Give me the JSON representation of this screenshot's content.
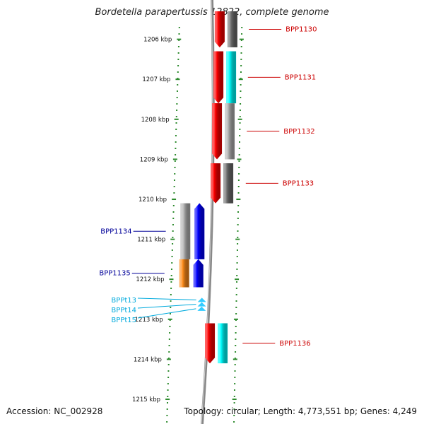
{
  "title": "Bordetella parapertussis 12822, complete genome",
  "accession_text": "Accession: NC_002928",
  "summary_text": "Topology: circular; Length: 4,773,551 bp; Genes: 4,249",
  "axis": {
    "unit": "kbp",
    "start_kbp": 1205.3,
    "end_kbp": 1215.3,
    "ticks": [
      "1206 kbp",
      "1207 kbp",
      "1208 kbp",
      "1209 kbp",
      "1210 kbp",
      "1211 kbp",
      "1212 kbp",
      "1213 kbp",
      "1214 kbp",
      "1215 kbp"
    ]
  },
  "colors": {
    "axis_dots": "#2e8b2e",
    "red": "#ff0000",
    "blue": "#0000ff",
    "cyan": "#00ffff",
    "trna": "#33ccff",
    "gray": "#b4b4b4",
    "darkgray": "#6e6e6e",
    "orange": "#ff8c1a",
    "label_red": "#cc0000",
    "label_blue": "#000099",
    "label_cyan": "#00aadd",
    "backbone": "#888888"
  },
  "features": [
    {
      "name": "BPP1130",
      "start_kbp": 1205.3,
      "end_kbp": 1206.2,
      "strand": "+",
      "gene_color": "red",
      "cog_color": "darkgray",
      "label_color": "label_red"
    },
    {
      "name": "BPP1131",
      "start_kbp": 1206.3,
      "end_kbp": 1207.6,
      "strand": "+",
      "gene_color": "red",
      "cog_color": "cyan",
      "label_color": "label_red"
    },
    {
      "name": "BPP1132",
      "start_kbp": 1207.6,
      "end_kbp": 1209.0,
      "strand": "+",
      "gene_color": "red",
      "cog_color": "gray",
      "label_color": "label_red"
    },
    {
      "name": "BPP1133",
      "start_kbp": 1209.1,
      "end_kbp": 1210.1,
      "strand": "+",
      "gene_color": "red",
      "cog_color": "darkgray",
      "label_color": "label_red"
    },
    {
      "name": "BPP1134",
      "start_kbp": 1210.1,
      "end_kbp": 1211.5,
      "strand": "-",
      "gene_color": "blue",
      "cog_color": "gray",
      "label_color": "label_blue"
    },
    {
      "name": "BPP1135",
      "start_kbp": 1211.5,
      "end_kbp": 1212.2,
      "strand": "-",
      "gene_color": "blue",
      "cog_color": "orange",
      "label_color": "label_blue"
    },
    {
      "name": "BPPt13",
      "start_kbp": 1212.48,
      "end_kbp": 1212.55,
      "strand": "-",
      "gene_color": "trna",
      "cog_color": null,
      "label_color": "label_cyan"
    },
    {
      "name": "BPPt14",
      "start_kbp": 1212.59,
      "end_kbp": 1212.66,
      "strand": "-",
      "gene_color": "trna",
      "cog_color": null,
      "label_color": "label_cyan"
    },
    {
      "name": "BPPt15",
      "start_kbp": 1212.7,
      "end_kbp": 1212.77,
      "strand": "-",
      "gene_color": "trna",
      "cog_color": null,
      "label_color": "label_cyan"
    },
    {
      "name": "BPP1136",
      "start_kbp": 1213.1,
      "end_kbp": 1214.1,
      "strand": "+",
      "gene_color": "red",
      "cog_color": "cyan",
      "label_color": "label_red"
    }
  ]
}
